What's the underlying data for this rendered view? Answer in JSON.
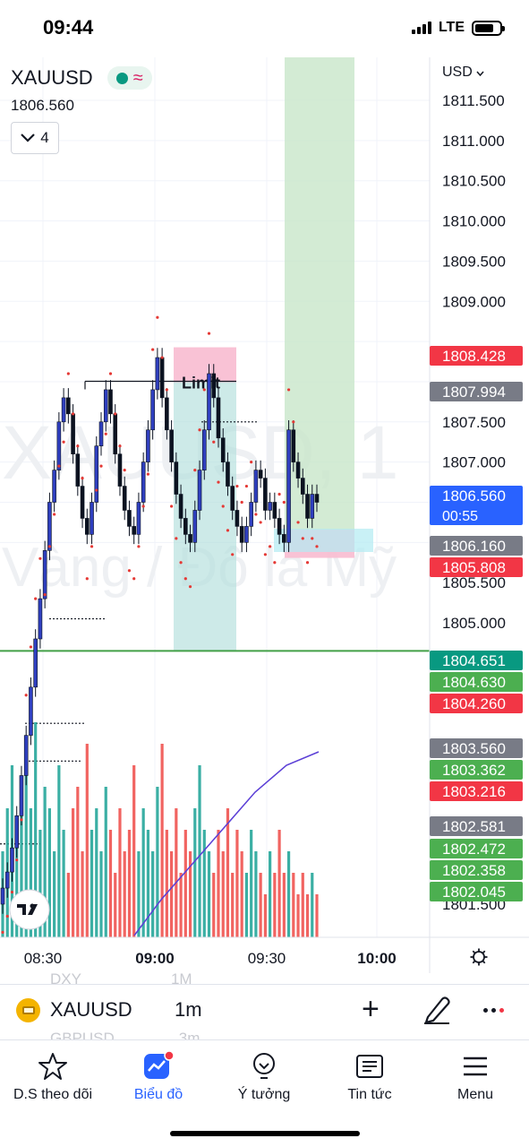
{
  "status_bar": {
    "time": "09:44",
    "network": "LTE"
  },
  "symbol": {
    "ticker": "XAUUSD",
    "price": "1806.560",
    "indicator_count": "4",
    "watermark_ticker": "XAUUSD, 1",
    "watermark_name": "Vàng / Đô la Mỹ"
  },
  "currency": "USD",
  "order_label": "Limit",
  "time_axis": [
    "08:30",
    "09:00",
    "09:30",
    "10:00"
  ],
  "price_axis_ticks": [
    "1811.500",
    "1811.000",
    "1810.500",
    "1810.000",
    "1809.500",
    "1809.000",
    "1807.500",
    "1807.000",
    "1805.500",
    "1805.000",
    "1801.500"
  ],
  "price_tags": [
    {
      "value": "1808.428",
      "color": "#f23645"
    },
    {
      "value": "1807.994",
      "color": "#787b86"
    },
    {
      "value": "1806.560",
      "color": "#2962ff",
      "sub": "00:55"
    },
    {
      "value": "1806.160",
      "color": "#787b86"
    },
    {
      "value": "1805.808",
      "color": "#f23645"
    },
    {
      "value": "1804.651",
      "color": "#089981"
    },
    {
      "value": "1804.630",
      "color": "#4caf50"
    },
    {
      "value": "1804.260",
      "color": "#f23645"
    },
    {
      "value": "1803.560",
      "color": "#787b86"
    },
    {
      "value": "1803.362",
      "color": "#4caf50"
    },
    {
      "value": "1803.216",
      "color": "#f23645"
    },
    {
      "value": "1802.581",
      "color": "#787b86"
    },
    {
      "value": "1802.472",
      "color": "#4caf50"
    },
    {
      "value": "1802.358",
      "color": "#4caf50"
    },
    {
      "value": "1802.045",
      "color": "#4caf50"
    }
  ],
  "colors": {
    "up": "#089981",
    "down": "#f23645",
    "accent": "#2962ff",
    "candle_up": "#1e2a8a",
    "candle_down": "#0b1220"
  },
  "chart_data": {
    "type": "candlestick",
    "symbol": "XAUUSD",
    "interval": "1m",
    "x_range": [
      "08:20",
      "10:05"
    ],
    "ylim": [
      1801.1,
      1811.8
    ],
    "last_price": 1806.56,
    "candles_close": [
      1801.7,
      1801.9,
      1802.2,
      1802.6,
      1803.1,
      1803.6,
      1804.2,
      1804.8,
      1805.3,
      1805.9,
      1806.5,
      1806.9,
      1807.5,
      1807.8,
      1807.6,
      1807.1,
      1806.7,
      1806.3,
      1806.1,
      1806.5,
      1807.2,
      1807.5,
      1807.9,
      1807.6,
      1807.1,
      1806.7,
      1806.4,
      1806.2,
      1806.1,
      1806.5,
      1807.0,
      1807.4,
      1807.9,
      1808.3,
      1807.8,
      1807.4,
      1807.0,
      1806.6,
      1806.3,
      1806.1,
      1806.0,
      1806.4,
      1806.9,
      1807.4,
      1808.1,
      1807.8,
      1807.3,
      1807.0,
      1806.7,
      1806.4,
      1806.2,
      1806.0,
      1806.2,
      1806.5,
      1806.9,
      1806.8,
      1806.4,
      1806.5,
      1806.3,
      1806.1,
      1806.0,
      1807.4,
      1807.0,
      1806.8,
      1806.6,
      1806.3,
      1806.6,
      1806.5
    ],
    "volume_scale": [
      0.4,
      0.6,
      0.8,
      0.5,
      0.7,
      0.9,
      0.6,
      1.0,
      0.5,
      0.7,
      0.6,
      0.4,
      0.8,
      0.5,
      0.3,
      0.6,
      0.7,
      0.4,
      0.9,
      0.5,
      0.6,
      0.4,
      0.7,
      0.5,
      0.3,
      0.6,
      0.4,
      0.5,
      0.8,
      0.4,
      0.6,
      0.5,
      0.4,
      0.7,
      0.9,
      0.5,
      0.4,
      0.6,
      0.3,
      0.5,
      0.4,
      0.6,
      0.8,
      0.5,
      0.4,
      0.3,
      0.5,
      0.4,
      0.6,
      0.3,
      0.5,
      0.4,
      0.3,
      0.5,
      0.4,
      0.3,
      0.2,
      0.4,
      0.3,
      0.5,
      0.3,
      0.4,
      0.3,
      0.2,
      0.3,
      0.2,
      0.3,
      0.2
    ],
    "order_zone": {
      "label": "Limit",
      "entry": 1807.994,
      "stop": 1808.428,
      "target": 1804.651
    },
    "long_zone": {
      "entry": 1806.16,
      "stop": 1805.808,
      "target": 1811.8
    },
    "support_line": 1804.651
  },
  "toolbar": {
    "symbol": "XAUUSD",
    "interval": "1m",
    "ghost_above": "DXY",
    "ghost_above_interval": "1M",
    "ghost_below": "GBPUSD",
    "ghost_below_interval": "3m"
  },
  "nav": [
    {
      "label": "D.S theo dõi",
      "icon": "star-icon"
    },
    {
      "label": "Biểu đồ",
      "icon": "chart-icon"
    },
    {
      "label": "Ý tưởng",
      "icon": "lightbulb-icon"
    },
    {
      "label": "Tin tức",
      "icon": "news-icon"
    },
    {
      "label": "Menu",
      "icon": "menu-icon"
    }
  ]
}
